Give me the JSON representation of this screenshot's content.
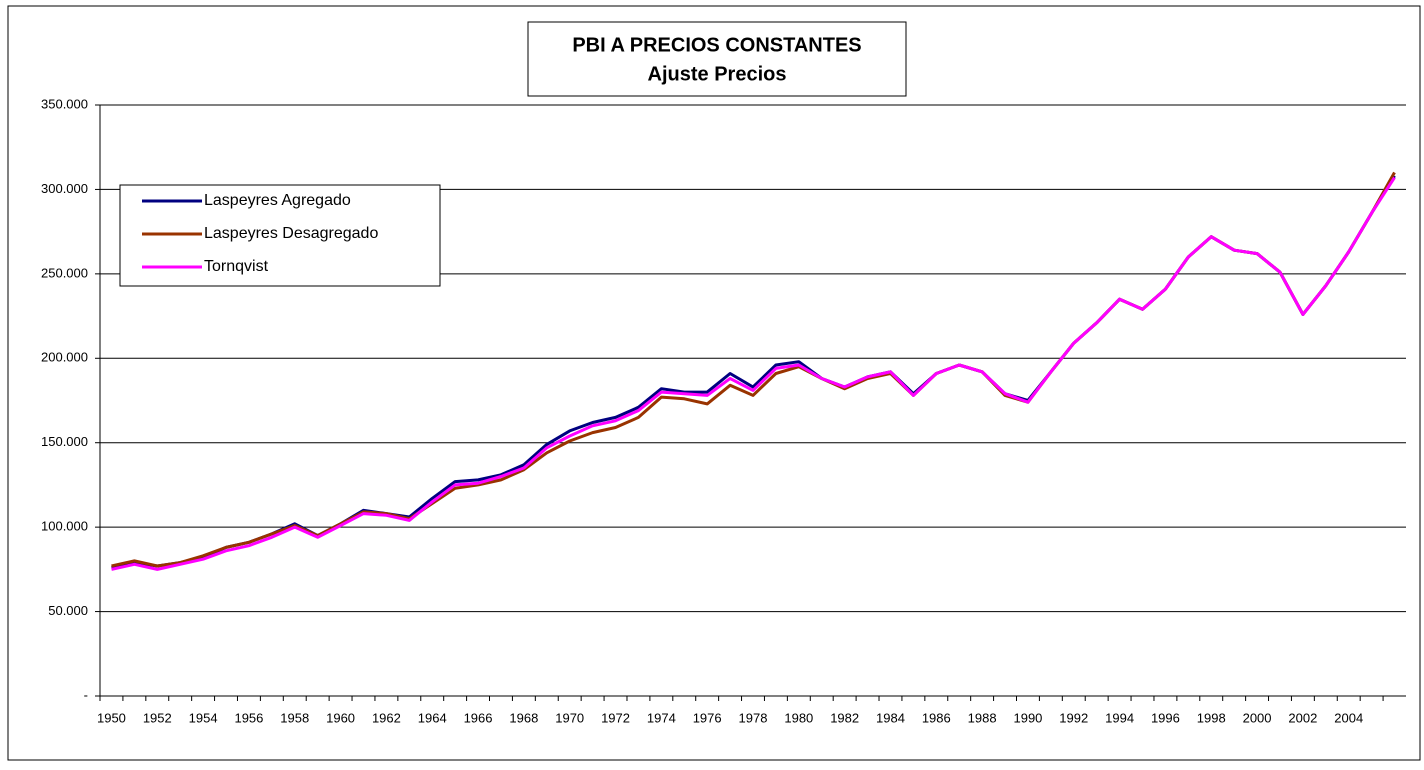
{
  "chart_data": {
    "type": "line",
    "title": "PBI A PRECIOS CONSTANTES",
    "subtitle": "Ajuste Precios",
    "categories": [
      "1950",
      null,
      "1952",
      null,
      "1954",
      null,
      "1956",
      null,
      "1958",
      null,
      "1960",
      null,
      "1962",
      null,
      "1964",
      null,
      "1966",
      null,
      "1968",
      null,
      "1970",
      null,
      "1972",
      null,
      "1974",
      null,
      "1976",
      null,
      "1978",
      null,
      "1980",
      null,
      "1982",
      null,
      "1984",
      null,
      "1986",
      null,
      "1988",
      null,
      "1990",
      null,
      "1992",
      null,
      "1994",
      null,
      "1996",
      null,
      "1998",
      null,
      "2000",
      null,
      "2002",
      null,
      "2004",
      null,
      null
    ],
    "series": [
      {
        "name": "Laspeyres Agregado",
        "color": "#000080",
        "values": [
          76000,
          79000,
          77000,
          79000,
          82000,
          88000,
          91000,
          96000,
          102000,
          95000,
          102000,
          110000,
          108000,
          106000,
          117000,
          127000,
          128000,
          131000,
          137000,
          149000,
          157000,
          162000,
          165000,
          171000,
          182000,
          180000,
          180000,
          191000,
          183000,
          196000,
          198000,
          188000,
          183000,
          189000,
          192000,
          179000,
          191000,
          196000,
          192000,
          179000,
          175000,
          192000,
          209000,
          221000,
          235000,
          229000,
          241000,
          260000,
          272000,
          264000,
          262000,
          251000,
          226000,
          243000,
          263000,
          286000,
          308000
        ]
      },
      {
        "name": "Laspeyres Desagregado",
        "color": "#993300",
        "values": [
          77000,
          80000,
          77000,
          79000,
          83000,
          88000,
          91000,
          96000,
          101000,
          95000,
          102000,
          109000,
          108000,
          105000,
          114000,
          123000,
          125000,
          128000,
          134000,
          144000,
          151000,
          156000,
          159000,
          165000,
          177000,
          176000,
          173000,
          184000,
          178000,
          191000,
          195000,
          188000,
          182000,
          188000,
          191000,
          178000,
          191000,
          196000,
          192000,
          178000,
          174000,
          192000,
          209000,
          221000,
          235000,
          229000,
          241000,
          260000,
          272000,
          264000,
          262000,
          251000,
          226000,
          243000,
          263000,
          286000,
          310000
        ]
      },
      {
        "name": "Tornqvist",
        "color": "#ff00ff",
        "values": [
          75000,
          78000,
          75000,
          78000,
          81000,
          86000,
          89000,
          94000,
          100000,
          94000,
          101000,
          108000,
          107000,
          104000,
          115000,
          125000,
          126000,
          130000,
          135000,
          147000,
          154000,
          160000,
          163000,
          169000,
          180000,
          179000,
          178000,
          188000,
          181000,
          194000,
          196000,
          188000,
          183000,
          189000,
          192000,
          178000,
          191000,
          196000,
          192000,
          179000,
          174000,
          192000,
          209000,
          221000,
          235000,
          229000,
          241000,
          260000,
          272000,
          264000,
          262000,
          251000,
          226000,
          243000,
          263000,
          286000,
          307000
        ]
      }
    ],
    "ylim": [
      0,
      350000
    ],
    "yticks": [
      {
        "value": 0,
        "label": "-"
      },
      {
        "value": 50000,
        "label": "50.000"
      },
      {
        "value": 100000,
        "label": "100.000"
      },
      {
        "value": 150000,
        "label": "150.000"
      },
      {
        "value": 200000,
        "label": "200.000"
      },
      {
        "value": 250000,
        "label": "250.000"
      },
      {
        "value": 300000,
        "label": "300.000"
      },
      {
        "value": 350000,
        "label": "350.000"
      }
    ],
    "grid": true,
    "legend": "left"
  }
}
